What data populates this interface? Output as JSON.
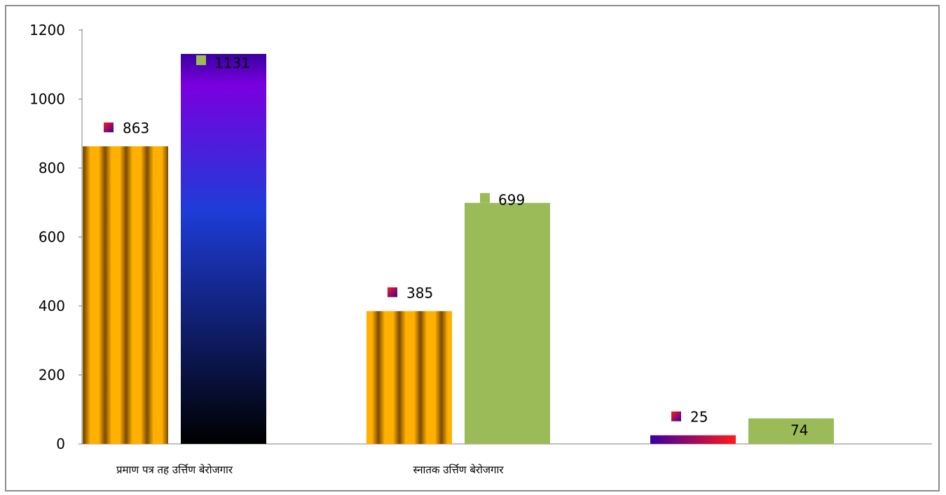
{
  "chart_data": {
    "type": "bar",
    "categories": [
      "प्रमाण पत्र तह उर्त्तिण बेरोजगार",
      "स्नातक उर्त्तिण बेरोजगार",
      ""
    ],
    "series": [
      {
        "values": [
          863,
          385,
          25
        ]
      },
      {
        "values": [
          1131,
          699,
          74
        ]
      }
    ],
    "ylim": [
      0,
      1200
    ],
    "yticks": [
      0,
      200,
      400,
      600,
      800,
      1000,
      1200
    ],
    "ytick_labels": [
      "0",
      "200",
      "400",
      "600",
      "800",
      "1000",
      "1200"
    ],
    "data_labels": [
      [
        "863",
        "385",
        "25"
      ],
      [
        "1131",
        "699",
        "74"
      ]
    ],
    "grid": false,
    "legend": "none",
    "colors": {
      "gold_light": "#ffb000",
      "gold_dark": "#7a4a00",
      "green": "#9bbb59",
      "blue_top": "#7a00e0",
      "blue_mid": "#1e3cd8",
      "blue_bottom": "#000000",
      "red": "#ff1a1a",
      "purple": "#3a00a0",
      "axis": "#808080"
    }
  }
}
